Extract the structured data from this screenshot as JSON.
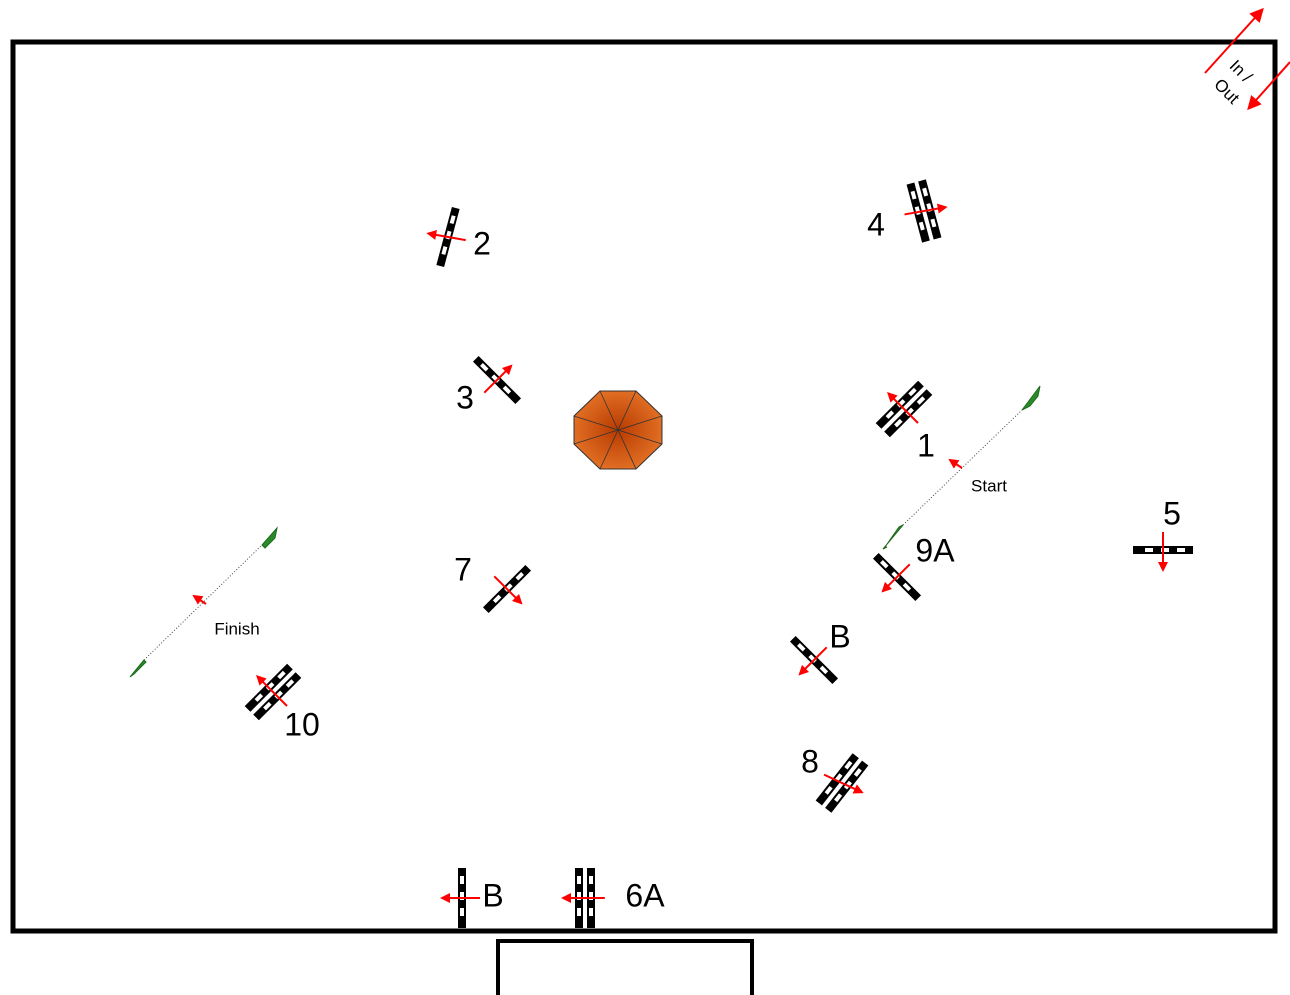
{
  "jumps": [
    {
      "label": "2"
    },
    {
      "label": "4"
    },
    {
      "label": "3"
    },
    {
      "label": "1"
    },
    {
      "label": "5"
    },
    {
      "label": "9A"
    },
    {
      "label": "7"
    },
    {
      "label": "B"
    },
    {
      "label": "10"
    },
    {
      "label": "8"
    },
    {
      "label": "B"
    },
    {
      "label": "6A"
    }
  ],
  "start": "Start",
  "finish": "Finish",
  "entrance": [
    "In /",
    "Out"
  ]
}
